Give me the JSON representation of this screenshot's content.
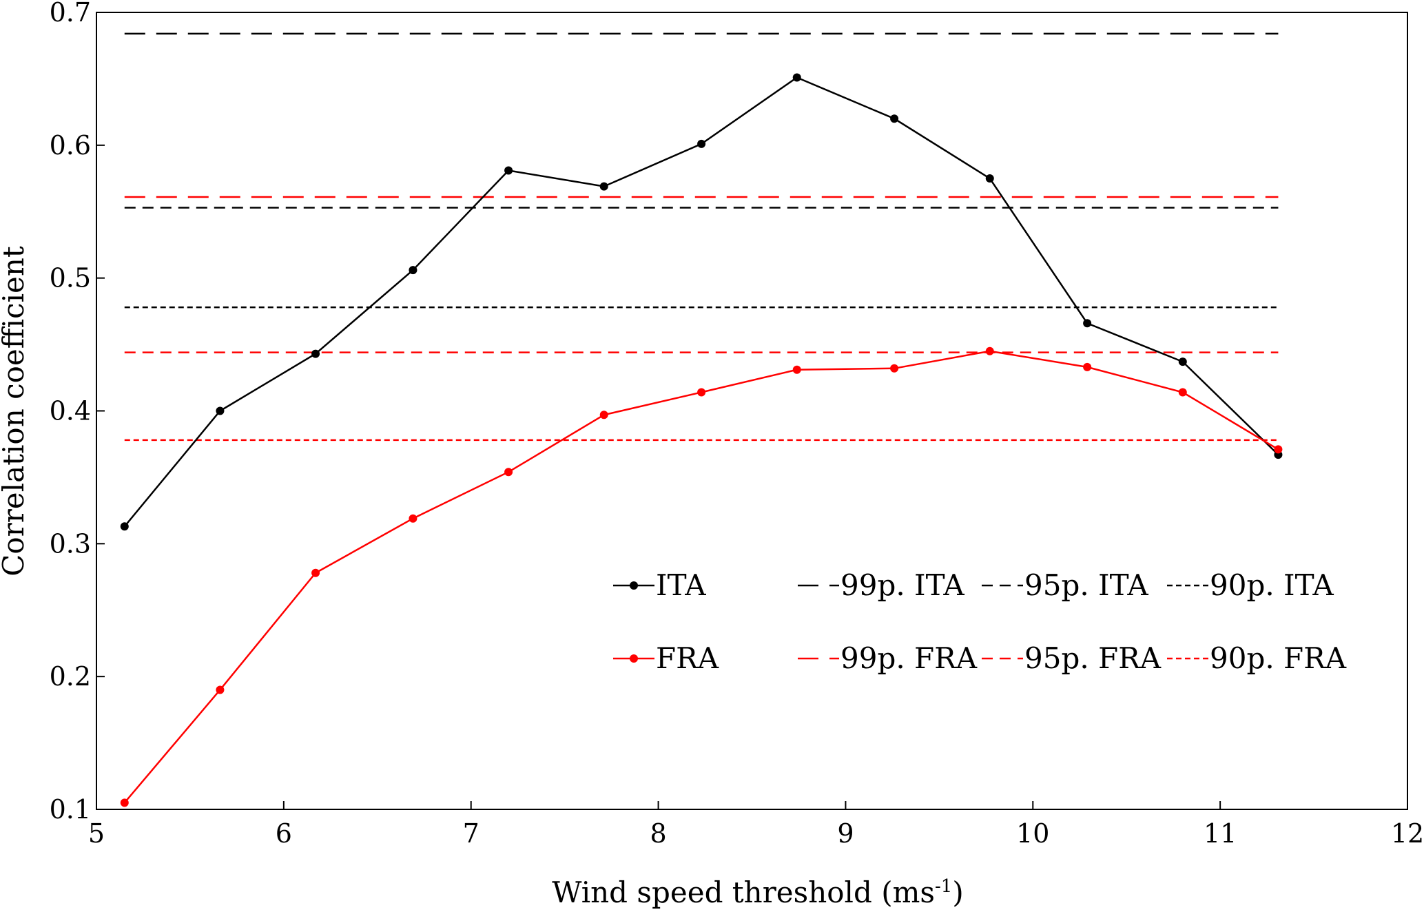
{
  "chart_data": {
    "type": "line",
    "xlabel": "Wind speed threshold (ms",
    "xlabel_sup": "-1",
    "xlabel_close": ")",
    "ylabel": "Correlation coefficient",
    "xlim": [
      5,
      12
    ],
    "ylim": [
      0.1,
      0.7
    ],
    "x_ticks": [
      5,
      6,
      7,
      8,
      9,
      10,
      11,
      12
    ],
    "y_ticks": [
      0.1,
      0.2,
      0.3,
      0.4,
      0.5,
      0.6,
      0.7
    ],
    "x_tick_labels": [
      "5",
      "6",
      "7",
      "8",
      "9",
      "10",
      "11",
      "12"
    ],
    "y_tick_labels": [
      "0.1",
      "0.2",
      "0.3",
      "0.4",
      "0.5",
      "0.6",
      "0.7"
    ],
    "grid": false,
    "legend_position": "lower-right",
    "x": [
      5.15,
      5.66,
      6.17,
      6.69,
      7.2,
      7.71,
      8.23,
      8.74,
      9.26,
      9.77,
      10.29,
      10.8,
      11.31
    ],
    "series": [
      {
        "name": "ITA",
        "color": "#000000",
        "style": "solid-markers",
        "values": [
          0.313,
          0.4,
          0.443,
          0.506,
          0.581,
          0.569,
          0.601,
          0.651,
          0.62,
          0.575,
          0.466,
          0.437,
          0.367
        ]
      },
      {
        "name": "FRA",
        "color": "#ff0000",
        "style": "solid-markers",
        "values": [
          0.105,
          0.19,
          0.278,
          0.319,
          0.354,
          0.397,
          0.414,
          0.431,
          0.432,
          0.445,
          0.433,
          0.414,
          0.371
        ]
      }
    ],
    "reference_lines": [
      {
        "name": "99p. ITA",
        "color": "#000000",
        "style": "long-dash",
        "y": 0.684
      },
      {
        "name": "95p. ITA",
        "color": "#000000",
        "style": "dash",
        "y": 0.553
      },
      {
        "name": "90p. ITA",
        "color": "#000000",
        "style": "short-dash",
        "y": 0.478
      },
      {
        "name": "99p. FRA",
        "color": "#ff0000",
        "style": "long-dash",
        "y": 0.561
      },
      {
        "name": "95p. FRA",
        "color": "#ff0000",
        "style": "dash",
        "y": 0.444
      },
      {
        "name": "90p. FRA",
        "color": "#ff0000",
        "style": "short-dash",
        "y": 0.378
      }
    ],
    "reference_x_range": [
      5.15,
      11.31
    ],
    "legend_rows": [
      [
        "ITA",
        "99p. ITA",
        "95p. ITA",
        "90p. ITA"
      ],
      [
        "FRA",
        "99p. FRA",
        "95p. FRA",
        "90p. FRA"
      ]
    ]
  }
}
